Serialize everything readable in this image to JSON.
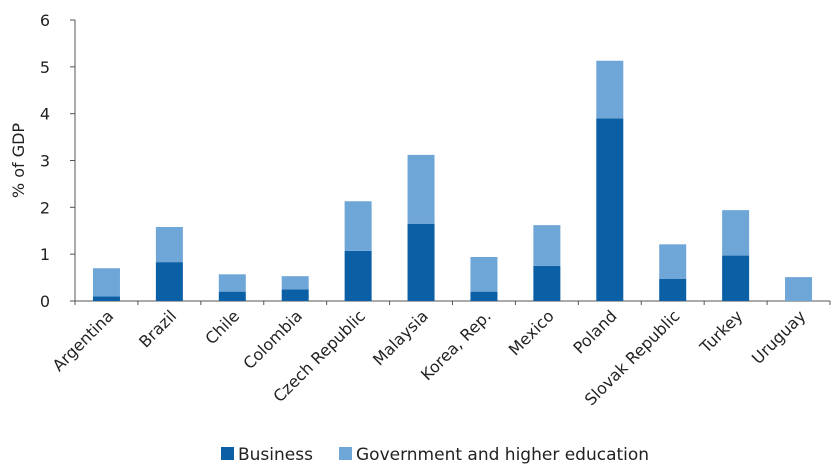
{
  "chart_data": {
    "type": "bar",
    "stacked": true,
    "title": "",
    "xlabel": "",
    "ylabel": "% of GDP",
    "ylim": [
      0,
      6
    ],
    "yticks": [
      0,
      1,
      2,
      3,
      4,
      5,
      6
    ],
    "grid": false,
    "legend_position": "bottom",
    "categories": [
      "Argentina",
      "Brazil",
      "Chile",
      "Colombia",
      "Czech Republic",
      "Malaysia",
      "Korea, Rep.",
      "Mexico",
      "Poland",
      "Slovak Republic",
      "Turkey",
      "Uruguay"
    ],
    "series": [
      {
        "name": "Business",
        "color": "#0b5fa5",
        "values": [
          0.1,
          0.83,
          0.2,
          0.25,
          1.07,
          1.65,
          0.2,
          0.75,
          3.9,
          0.47,
          0.97,
          0.0
        ]
      },
      {
        "name": "Government and higher education",
        "color": "#6fa6d8",
        "values": [
          0.6,
          0.75,
          0.37,
          0.28,
          1.06,
          1.47,
          0.74,
          0.87,
          1.23,
          0.74,
          0.97,
          0.51
        ]
      }
    ]
  }
}
